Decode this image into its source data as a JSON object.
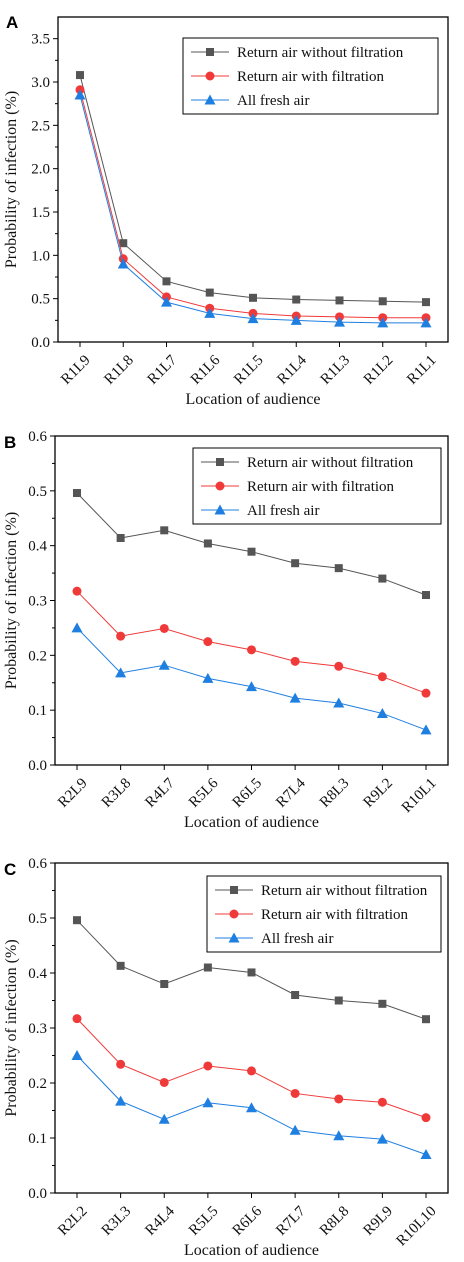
{
  "chart_data": [
    {
      "type": "line",
      "panel_label": "A",
      "categories": [
        "R1L9",
        "R1L8",
        "R1L7",
        "R1L6",
        "R1L5",
        "R1L4",
        "R1L3",
        "R1L2",
        "R1L1"
      ],
      "series": [
        {
          "name": "Return air without filtration",
          "color": "#555555",
          "marker": "square",
          "values": [
            3.08,
            1.14,
            0.7,
            0.57,
            0.51,
            0.49,
            0.48,
            0.47,
            0.46
          ]
        },
        {
          "name": "Return air with filtration",
          "color": "#f03a3a",
          "marker": "circle",
          "values": [
            2.91,
            0.96,
            0.52,
            0.39,
            0.33,
            0.3,
            0.29,
            0.28,
            0.28
          ]
        },
        {
          "name": "All fresh air",
          "color": "#1f7fe0",
          "marker": "triangle",
          "values": [
            2.85,
            0.9,
            0.46,
            0.33,
            0.27,
            0.25,
            0.23,
            0.22,
            0.22
          ]
        }
      ],
      "xlabel": "Location of audience",
      "ylabel": "Probability of infection (%)",
      "ylim": [
        0,
        3.75
      ],
      "yticks": [
        "0.0",
        "0.5",
        "1.0",
        "1.5",
        "2.0",
        "2.5",
        "3.0",
        "3.5"
      ],
      "legend": "top-right",
      "grid": false
    },
    {
      "type": "line",
      "panel_label": "B",
      "categories": [
        "R2L9",
        "R3L8",
        "R4L7",
        "R5L6",
        "R6L5",
        "R7L4",
        "R8L3",
        "R9L2",
        "R10L1"
      ],
      "series": [
        {
          "name": "Return air without filtration",
          "color": "#555555",
          "marker": "square",
          "values": [
            0.496,
            0.414,
            0.428,
            0.404,
            0.389,
            0.368,
            0.359,
            0.34,
            0.31
          ]
        },
        {
          "name": "Return air with filtration",
          "color": "#f03a3a",
          "marker": "circle",
          "values": [
            0.317,
            0.235,
            0.249,
            0.225,
            0.21,
            0.189,
            0.18,
            0.161,
            0.131
          ]
        },
        {
          "name": "All fresh air",
          "color": "#1f7fe0",
          "marker": "triangle",
          "values": [
            0.25,
            0.168,
            0.182,
            0.158,
            0.143,
            0.122,
            0.113,
            0.094,
            0.064
          ]
        }
      ],
      "xlabel": "Location of audience",
      "ylabel": "Probability of infection (%)",
      "ylim": [
        0,
        0.6
      ],
      "yticks": [
        "0.0",
        "0.1",
        "0.2",
        "0.3",
        "0.4",
        "0.5",
        "0.6"
      ],
      "legend": "top-right",
      "grid": false
    },
    {
      "type": "line",
      "panel_label": "C",
      "categories": [
        "R2L2",
        "R3L3",
        "R4L4",
        "R5L5",
        "R6L6",
        "R7L7",
        "R8L8",
        "R9L9",
        "R10L10"
      ],
      "series": [
        {
          "name": "Return air without filtration",
          "color": "#555555",
          "marker": "square",
          "values": [
            0.496,
            0.413,
            0.38,
            0.41,
            0.401,
            0.36,
            0.35,
            0.344,
            0.316
          ]
        },
        {
          "name": "Return air with filtration",
          "color": "#f03a3a",
          "marker": "circle",
          "values": [
            0.317,
            0.234,
            0.201,
            0.231,
            0.222,
            0.181,
            0.171,
            0.165,
            0.137
          ]
        },
        {
          "name": "All fresh air",
          "color": "#1f7fe0",
          "marker": "triangle",
          "values": [
            0.25,
            0.167,
            0.134,
            0.164,
            0.155,
            0.114,
            0.104,
            0.098,
            0.07
          ]
        }
      ],
      "xlabel": "Location of audience",
      "ylabel": "Probability of infection (%)",
      "ylim": [
        0,
        0.6
      ],
      "yticks": [
        "0.0",
        "0.1",
        "0.2",
        "0.3",
        "0.4",
        "0.5",
        "0.6"
      ],
      "legend": "top-right",
      "grid": false
    }
  ]
}
